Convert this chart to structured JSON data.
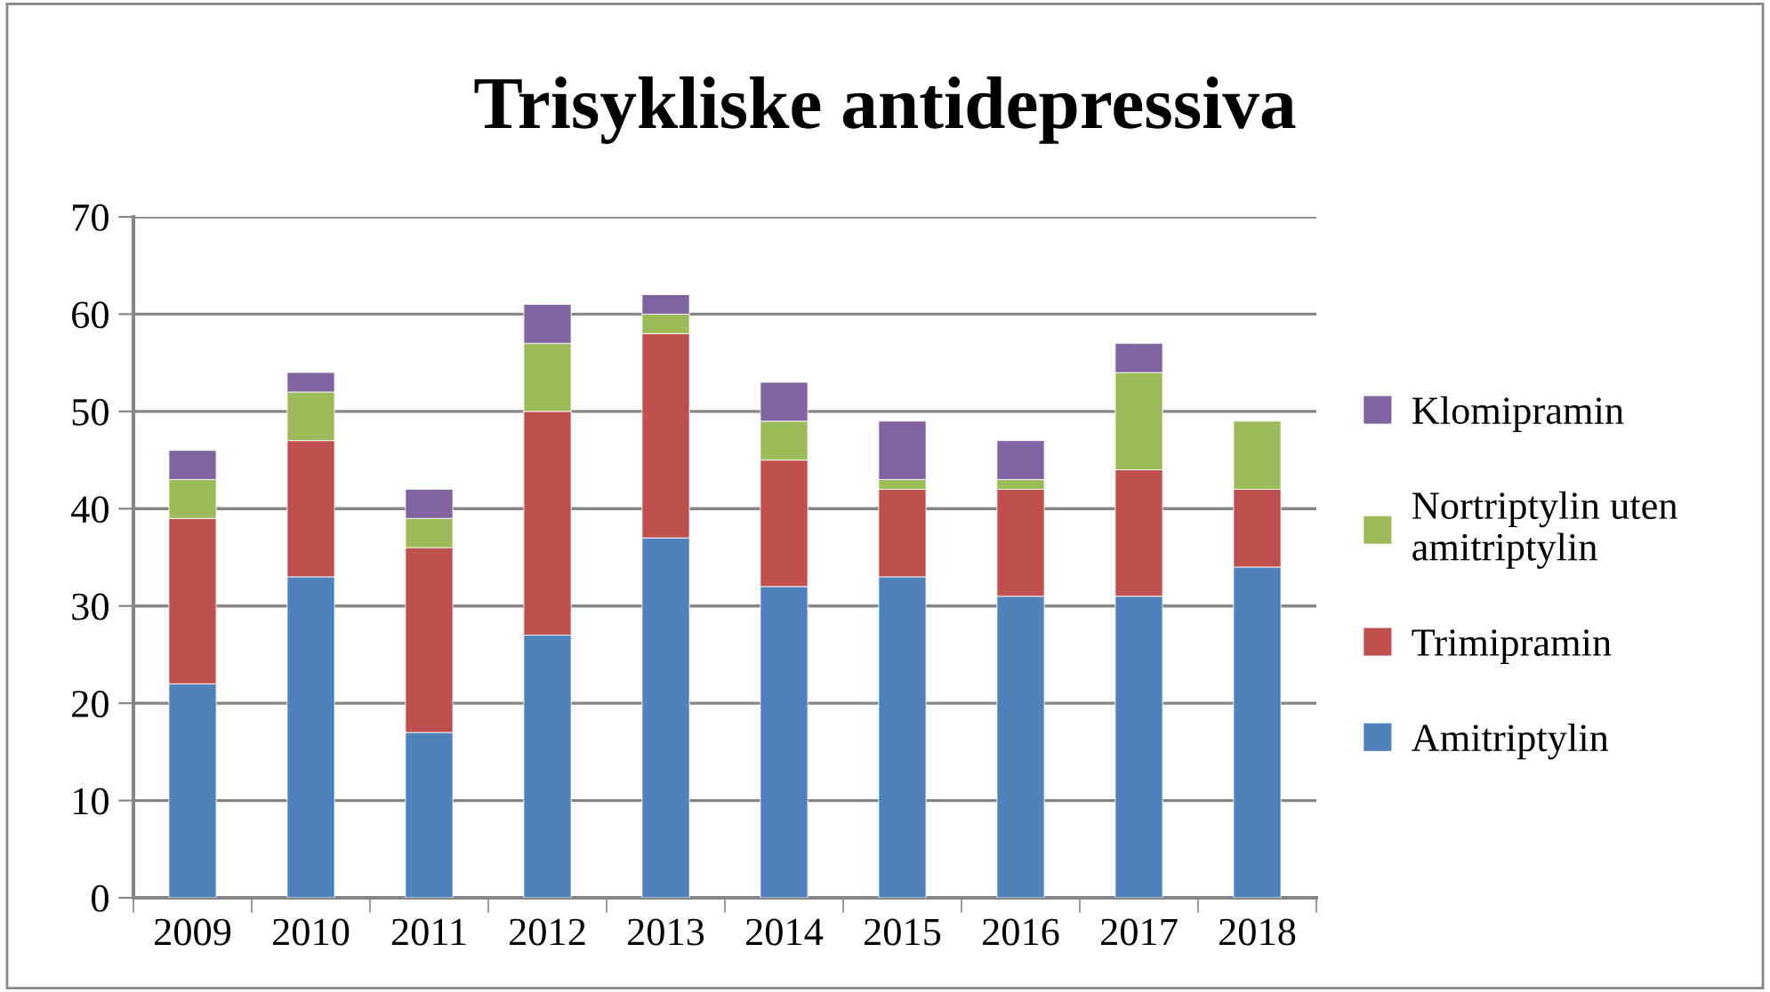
{
  "chart_data": {
    "type": "bar",
    "title": "Trisykliske antidepressiva",
    "stacked": true,
    "categories": [
      "2009",
      "2010",
      "2011",
      "2012",
      "2013",
      "2014",
      "2015",
      "2016",
      "2017",
      "2018"
    ],
    "series": [
      {
        "name": "Amitriptylin",
        "color": "#4f81bd",
        "values": [
          22,
          33,
          17,
          27,
          37,
          32,
          33,
          31,
          31,
          34
        ]
      },
      {
        "name": "Trimipramin",
        "color": "#c0504d",
        "values": [
          17,
          14,
          19,
          23,
          21,
          13,
          9,
          11,
          13,
          8
        ]
      },
      {
        "name": "Nortriptylin uten\namitriptylin",
        "color": "#9bbb59",
        "values": [
          4,
          5,
          3,
          7,
          2,
          4,
          1,
          1,
          10,
          7
        ]
      },
      {
        "name": "Klomipramin",
        "color": "#8064a2",
        "values": [
          3,
          2,
          3,
          4,
          2,
          4,
          6,
          4,
          3,
          null
        ]
      }
    ],
    "ylim": [
      0,
      70
    ],
    "yticks": [
      0,
      10,
      20,
      30,
      40,
      50,
      60,
      70
    ],
    "grid": "y",
    "legend": "right"
  }
}
